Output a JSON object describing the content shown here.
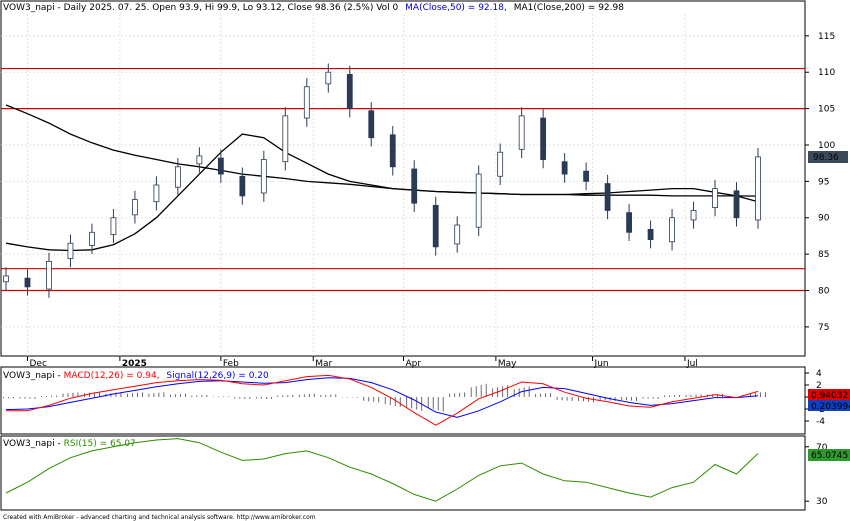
{
  "header": {
    "main": "VOW3_napi - Daily 2025. 07. 25. Open 93.9, Hi 99.9, Lo 93.12, Close 98.36 (2.5%) Vol 0",
    "ma50": "MA(Close,50) = 92.18,",
    "ma200": "MA1(Close,200) = 92.98",
    "macd_prefix": "VOW3_napi - ",
    "macd": "MACD(12,26) = 0.94,",
    "signal": "Signal(12,26,9) = 0.20",
    "rsi_prefix": "VOW3_napi - ",
    "rsi": "RSI(15) = 65.07"
  },
  "footer": "Created with AmiBroker - advanced charting and technical analysis software. http://www.amibroker.com",
  "badges": {
    "price": "98.36",
    "macd": "0.94032",
    "signal": "0.203994",
    "rsi": "65.0745"
  },
  "colors": {
    "candle_up": "#ffffff",
    "candle_down": "#2b3a55",
    "ma": "#000000",
    "hline": "#cc0000",
    "macd": "#ff0000",
    "signal": "#0000ff",
    "rsi": "#2e8b00",
    "badge_bg": "#3b4a5a",
    "rsi_badge_bg": "#2e9a2e",
    "macd_badge_bg": "#dd0000",
    "signal_badge_bg": "#1040c0"
  },
  "chart_data": [
    {
      "type": "candlestick",
      "x": [
        "2024-11-25",
        "2024-12-02",
        "2024-12-09",
        "2024-12-16",
        "2024-12-23",
        "2024-12-30",
        "2025-01-06",
        "2025-01-13",
        "2025-01-20",
        "2025-01-27",
        "2025-02-03",
        "2025-02-10",
        "2025-02-17",
        "2025-02-24",
        "2025-03-03",
        "2025-03-10",
        "2025-03-17",
        "2025-03-24",
        "2025-03-31",
        "2025-04-07",
        "2025-04-14",
        "2025-04-21",
        "2025-04-28",
        "2025-05-05",
        "2025-05-12",
        "2025-05-19",
        "2025-05-26",
        "2025-06-02",
        "2025-06-09",
        "2025-06-16",
        "2025-06-23",
        "2025-06-30",
        "2025-07-07",
        "2025-07-14",
        "2025-07-21",
        "2025-07-25"
      ],
      "close": [
        82,
        80.5,
        84,
        86.5,
        88,
        90,
        92.5,
        94.5,
        97,
        98.5,
        96,
        93,
        98,
        104,
        108,
        110,
        105,
        101,
        97,
        92,
        86,
        89,
        96,
        99,
        104,
        98,
        96,
        95,
        91,
        88,
        87,
        90,
        91,
        94,
        90,
        98.36
      ],
      "ma50": [
        86.5,
        86,
        85.6,
        85.5,
        85.6,
        86.3,
        87.8,
        90,
        93,
        96,
        99,
        101.5,
        101,
        99,
        97.5,
        96,
        95,
        94.5,
        94,
        93.8,
        93.6,
        93.5,
        93.4,
        93.3,
        93.2,
        93.2,
        93.2,
        93.3,
        93.4,
        93.6,
        93.8,
        94,
        94,
        93.5,
        93,
        92.2
      ],
      "ma200": [
        105.5,
        104.3,
        103,
        101.5,
        100.3,
        99.3,
        98.6,
        98,
        97.4,
        97,
        96.5,
        96,
        95.7,
        95.4,
        95,
        94.8,
        94.6,
        94.3,
        94,
        93.8,
        93.6,
        93.5,
        93.4,
        93.3,
        93.2,
        93.2,
        93.2,
        93.1,
        93.1,
        93.1,
        93.1,
        93,
        93,
        93,
        93,
        92.98
      ],
      "hlines": [
        110.5,
        105,
        83,
        80
      ],
      "y_ticks": [
        75,
        80,
        85,
        90,
        95,
        100,
        105,
        110,
        115
      ],
      "x_labels": [
        "Dec",
        "2025",
        "Feb",
        "Mar",
        "Apr",
        "May",
        "Jun",
        "Jul"
      ],
      "ylim": [
        71,
        118
      ]
    },
    {
      "type": "line",
      "name": "MACD",
      "macd": [
        -2.3,
        -2.3,
        -1.4,
        -0.2,
        0.6,
        1.2,
        1.8,
        2.4,
        2.7,
        2.9,
        2.8,
        2.2,
        2.0,
        2.7,
        3.4,
        3.6,
        3.0,
        1.6,
        -0.3,
        -2.6,
        -4.7,
        -2.7,
        -0.3,
        1.0,
        2.5,
        2.2,
        0.8,
        -0.2,
        -0.8,
        -1.5,
        -1.7,
        -0.8,
        -0.2,
        0.4,
        -0.1,
        0.94
      ],
      "signal": [
        -2.1,
        -2.0,
        -1.6,
        -0.9,
        -0.2,
        0.5,
        1.1,
        1.7,
        2.2,
        2.6,
        2.7,
        2.5,
        2.3,
        2.4,
        2.9,
        3.2,
        3.1,
        2.4,
        1.2,
        -0.5,
        -2.5,
        -3.4,
        -2.3,
        -0.8,
        0.9,
        1.6,
        1.4,
        0.6,
        -0.2,
        -0.9,
        -1.4,
        -1.1,
        -0.6,
        -0.1,
        -0.1,
        0.2
      ],
      "y_ticks": [
        4,
        2,
        0,
        -2,
        -4
      ],
      "ylim": [
        -6,
        4.5
      ]
    },
    {
      "type": "line",
      "name": "RSI",
      "values": [
        36,
        44,
        54,
        62,
        67,
        70,
        73,
        75,
        76,
        73,
        66,
        60,
        61,
        65,
        67,
        62,
        55,
        50,
        43,
        35,
        30,
        39,
        49,
        56,
        58,
        50,
        45,
        44,
        40,
        36,
        33,
        40,
        44,
        57,
        50,
        65.07
      ],
      "y_ticks": [
        30,
        70
      ],
      "ylim": [
        25,
        75
      ]
    }
  ]
}
